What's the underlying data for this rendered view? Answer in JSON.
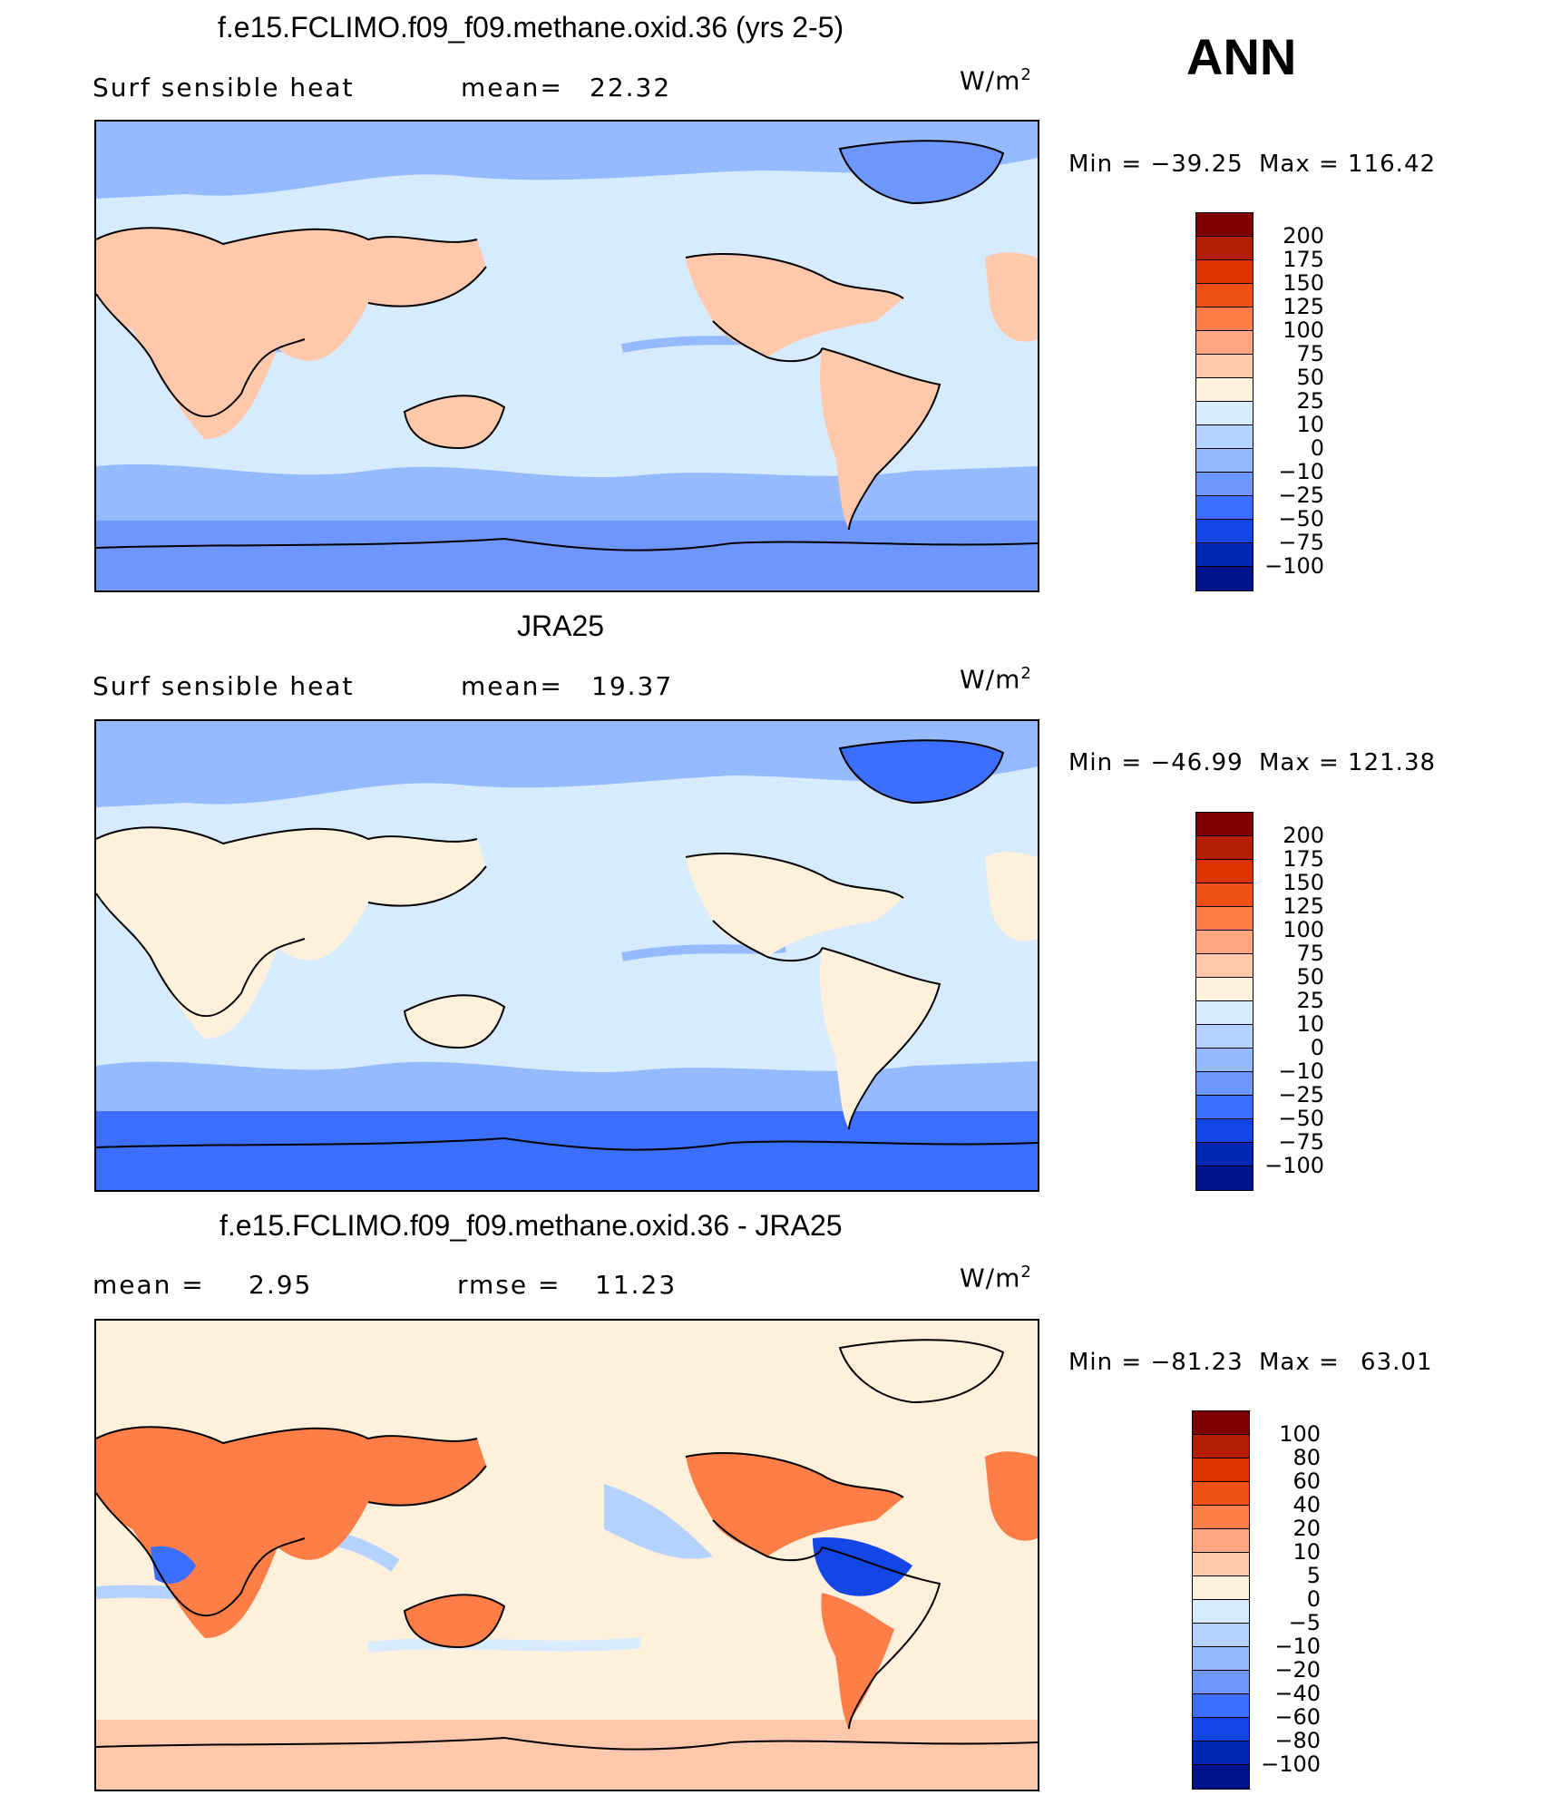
{
  "season": "ANN",
  "panels": [
    {
      "title": "f.e15.FCLIMO.f09_f09.methane.oxid.36 (yrs 2-5)",
      "left_label": "Surf  sensible  heat",
      "mean_label": "mean=",
      "mean_value": "22.32",
      "units_base": "W/m",
      "units_exp": "2",
      "min_label": "Min",
      "min_value": "−39.25",
      "max_label": "Max",
      "max_value": "116.42",
      "colorbar": {
        "levels": [
          "200",
          "175",
          "150",
          "125",
          "100",
          "75",
          "50",
          "25",
          "10",
          "0",
          "−10",
          "−25",
          "−50",
          "−75",
          "−100"
        ],
        "colors": [
          "#800000",
          "#b41e00",
          "#dc3200",
          "#f05014",
          "#ff7d46",
          "#ffa680",
          "#ffc8aa",
          "#fff0dc",
          "#d7ebff",
          "#b4d2ff",
          "#96baff",
          "#6e96ff",
          "#3c6eff",
          "#1446e6",
          "#0028b4",
          "#00128c"
        ]
      },
      "regions": {
        "ocean": "#d7ebff",
        "land": "#ffc8aa",
        "polar": "#6e96ff",
        "cold": "#96baff"
      }
    },
    {
      "title": "JRA25",
      "left_label": "Surf  sensible  heat",
      "mean_label": "mean=",
      "mean_value": "19.37",
      "units_base": "W/m",
      "units_exp": "2",
      "min_label": "Min",
      "min_value": "−46.99",
      "max_label": "Max",
      "max_value": "121.38",
      "colorbar": {
        "levels": [
          "200",
          "175",
          "150",
          "125",
          "100",
          "75",
          "50",
          "25",
          "10",
          "0",
          "−10",
          "−25",
          "−50",
          "−75",
          "−100"
        ],
        "colors": [
          "#800000",
          "#b41e00",
          "#dc3200",
          "#f05014",
          "#ff7d46",
          "#ffa680",
          "#ffc8aa",
          "#fff0dc",
          "#d7ebff",
          "#b4d2ff",
          "#96baff",
          "#6e96ff",
          "#3c6eff",
          "#1446e6",
          "#0028b4",
          "#00128c"
        ]
      },
      "regions": {
        "ocean": "#d7ebff",
        "land": "#fff0dc",
        "polar": "#3c6eff",
        "cold": "#96baff"
      }
    },
    {
      "title": "f.e15.FCLIMO.f09_f09.methane.oxid.36 - JRA25",
      "left_label": "mean  =",
      "mean_label": "",
      "mean_value": "2.95",
      "rmse_label": "rmse  =",
      "rmse_value": "11.23",
      "units_base": "W/m",
      "units_exp": "2",
      "min_label": "Min",
      "min_value": "−81.23",
      "max_label": "Max",
      "max_value": "63.01",
      "colorbar": {
        "levels": [
          "100",
          "80",
          "60",
          "40",
          "20",
          "10",
          "5",
          "0",
          "−5",
          "−10",
          "−20",
          "−40",
          "−60",
          "−80",
          "−100"
        ],
        "colors": [
          "#800000",
          "#b41e00",
          "#dc3200",
          "#f05014",
          "#ff7d46",
          "#ffa680",
          "#ffc8aa",
          "#fff0dc",
          "#d7ebff",
          "#b4d2ff",
          "#96baff",
          "#6e96ff",
          "#3c6eff",
          "#1446e6",
          "#0028b4",
          "#00128c"
        ]
      },
      "regions": {
        "ocean": "#fff0dc",
        "land": "#ff7d46",
        "polar": "#ffc8aa",
        "cold": "#b4d2ff"
      }
    }
  ]
}
